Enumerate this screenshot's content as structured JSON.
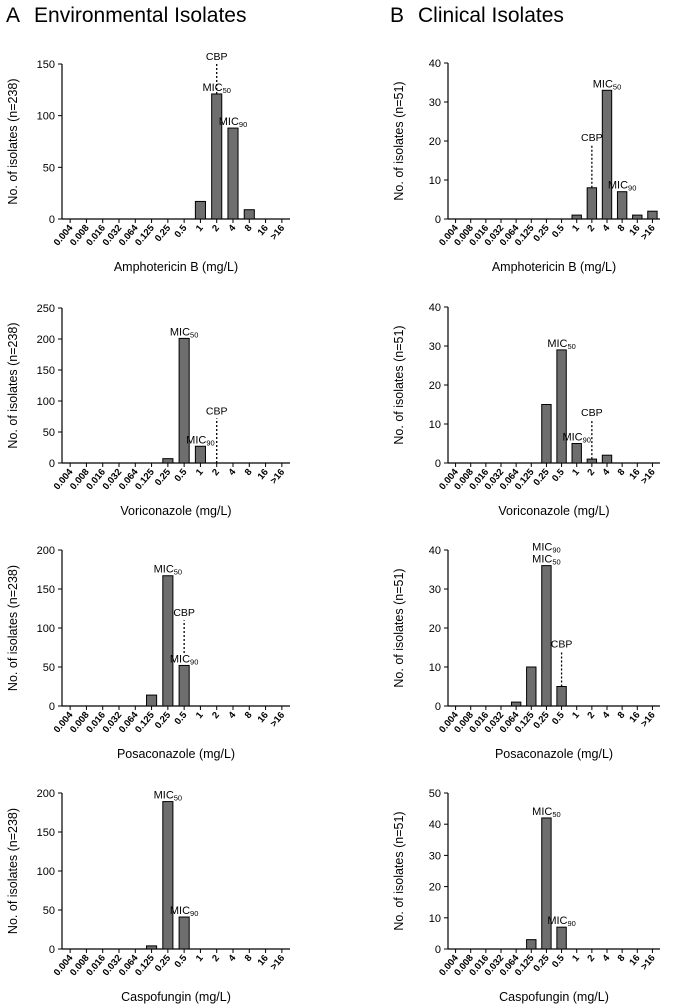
{
  "panels": {
    "A": {
      "letter": "A",
      "title": "Environmental Isolates"
    },
    "B": {
      "letter": "B",
      "title": "Clinical Isolates"
    }
  },
  "colors": {
    "bar": "#6e6e6e",
    "axis": "#000000"
  },
  "chart_data": [
    {
      "id": "env-amb",
      "type": "bar",
      "panel": "A",
      "xlabel": "Amphotericin B (mg/L)",
      "ylabel": "No. of isolates (n=238)",
      "categories": [
        "0.004",
        "0.008",
        "0.016",
        "0.032",
        "0.064",
        "0.125",
        "0.25",
        "0.5",
        "1",
        "2",
        "4",
        "8",
        "16",
        ">16"
      ],
      "values": [
        0,
        0,
        0,
        0,
        0,
        0,
        0,
        0,
        17,
        121,
        88,
        9,
        0,
        0
      ],
      "ylim": [
        0,
        150
      ],
      "yticks": [
        0,
        50,
        100,
        150
      ],
      "annotations": [
        {
          "label": "MIC",
          "sub": "50",
          "category": "2",
          "value": 121
        },
        {
          "label": "MIC",
          "sub": "90",
          "category": "4",
          "value": 88
        }
      ],
      "cbp": {
        "label": "CBP",
        "category": "2",
        "from": 121,
        "to": 150
      }
    },
    {
      "id": "cli-amb",
      "type": "bar",
      "panel": "B",
      "xlabel": "Amphotericin B (mg/L)",
      "ylabel": "No. of isolates (n=51)",
      "categories": [
        "0.004",
        "0.008",
        "0.016",
        "0.032",
        "0.064",
        "0.125",
        "0.25",
        "0.5",
        "1",
        "2",
        "4",
        "8",
        "16",
        ">16"
      ],
      "values": [
        0,
        0,
        0,
        0,
        0,
        0,
        0,
        0,
        1,
        8,
        33,
        7,
        1,
        2
      ],
      "ylim": [
        0,
        40
      ],
      "yticks": [
        0,
        10,
        20,
        30,
        40
      ],
      "annotations": [
        {
          "label": "MIC",
          "sub": "50",
          "category": "4",
          "value": 33
        },
        {
          "label": "MIC",
          "sub": "90",
          "category": "8",
          "value": 7
        }
      ],
      "cbp": {
        "label": "CBP",
        "category": "2",
        "from": 8,
        "to": 19
      }
    },
    {
      "id": "env-vor",
      "type": "bar",
      "panel": "A",
      "xlabel": "Voriconazole (mg/L)",
      "ylabel": "No. of isolates (n=238)",
      "categories": [
        "0.004",
        "0.008",
        "0.016",
        "0.032",
        "0.064",
        "0.125",
        "0.25",
        "0.5",
        "1",
        "2",
        "4",
        "8",
        "16",
        ">16"
      ],
      "values": [
        0,
        0,
        0,
        0,
        0,
        0,
        7,
        201,
        27,
        0,
        0,
        0,
        0,
        0
      ],
      "ylim": [
        0,
        250
      ],
      "yticks": [
        0,
        50,
        100,
        150,
        200,
        250
      ],
      "annotations": [
        {
          "label": "MIC",
          "sub": "50",
          "category": "0.5",
          "value": 201
        },
        {
          "label": "MIC",
          "sub": "90",
          "category": "1",
          "value": 27
        }
      ],
      "cbp": {
        "label": "CBP",
        "category": "2",
        "from": 0,
        "to": 72
      }
    },
    {
      "id": "cli-vor",
      "type": "bar",
      "panel": "B",
      "xlabel": "Voriconazole (mg/L)",
      "ylabel": "No. of isolates (n=51)",
      "categories": [
        "0.004",
        "0.008",
        "0.016",
        "0.032",
        "0.064",
        "0.125",
        "0.25",
        "0.5",
        "1",
        "2",
        "4",
        "8",
        "16",
        ">16"
      ],
      "values": [
        0,
        0,
        0,
        0,
        0,
        0,
        15,
        29,
        5,
        1,
        2,
        0,
        0,
        0
      ],
      "ylim": [
        0,
        40
      ],
      "yticks": [
        0,
        10,
        20,
        30,
        40
      ],
      "annotations": [
        {
          "label": "MIC",
          "sub": "50",
          "category": "0.5",
          "value": 29
        },
        {
          "label": "MIC",
          "sub": "90",
          "category": "1",
          "value": 5
        }
      ],
      "cbp": {
        "label": "CBP",
        "category": "2",
        "from": 1,
        "to": 11
      }
    },
    {
      "id": "env-pos",
      "type": "bar",
      "panel": "A",
      "xlabel": "Posaconazole (mg/L)",
      "ylabel": "No. of isolates (n=238)",
      "categories": [
        "0.004",
        "0.008",
        "0.016",
        "0.032",
        "0.064",
        "0.125",
        "0.25",
        "0.5",
        "1",
        "2",
        "4",
        "8",
        "16",
        ">16"
      ],
      "values": [
        0,
        0,
        0,
        0,
        0,
        14,
        167,
        52,
        0,
        0,
        0,
        0,
        0,
        0
      ],
      "ylim": [
        0,
        200
      ],
      "yticks": [
        0,
        50,
        100,
        150,
        200
      ],
      "annotations": [
        {
          "label": "MIC",
          "sub": "50",
          "category": "0.25",
          "value": 167
        },
        {
          "label": "MIC",
          "sub": "90",
          "category": "0.5",
          "value": 52
        }
      ],
      "cbp": {
        "label": "CBP",
        "category": "0.5",
        "from": 68,
        "to": 110
      }
    },
    {
      "id": "cli-pos",
      "type": "bar",
      "panel": "B",
      "xlabel": "Posaconazole (mg/L)",
      "ylabel": "No. of isolates (n=51)",
      "categories": [
        "0.004",
        "0.008",
        "0.016",
        "0.032",
        "0.064",
        "0.125",
        "0.25",
        "0.5",
        "1",
        "2",
        "4",
        "8",
        "16",
        ">16"
      ],
      "values": [
        0,
        0,
        0,
        0,
        1,
        10,
        36,
        5,
        0,
        0,
        0,
        0,
        0,
        0
      ],
      "ylim": [
        0,
        40
      ],
      "yticks": [
        0,
        10,
        20,
        30,
        40
      ],
      "annotations": [
        {
          "label": "MIC",
          "sub": "50",
          "category": "0.25",
          "value": 36
        },
        {
          "label": "MIC",
          "sub": "90",
          "category": "0.25",
          "value": 36,
          "stack": 1
        }
      ],
      "cbp": {
        "label": "CBP",
        "category": "0.5",
        "from": 5,
        "to": 14
      }
    },
    {
      "id": "env-cas",
      "type": "bar",
      "panel": "A",
      "xlabel": "Caspofungin (mg/L)",
      "ylabel": "No. of isolates (n=238)",
      "categories": [
        "0.004",
        "0.008",
        "0.016",
        "0.032",
        "0.064",
        "0.125",
        "0.25",
        "0.5",
        "1",
        "2",
        "4",
        "8",
        "16",
        ">16"
      ],
      "values": [
        0,
        0,
        0,
        0,
        0,
        4,
        189,
        41,
        0,
        0,
        0,
        0,
        0,
        0
      ],
      "ylim": [
        0,
        200
      ],
      "yticks": [
        0,
        50,
        100,
        150,
        200
      ],
      "annotations": [
        {
          "label": "MIC",
          "sub": "50",
          "category": "0.25",
          "value": 189
        },
        {
          "label": "MIC",
          "sub": "90",
          "category": "0.5",
          "value": 41
        }
      ]
    },
    {
      "id": "cli-cas",
      "type": "bar",
      "panel": "B",
      "xlabel": "Caspofungin (mg/L)",
      "ylabel": "No. of isolates (n=51)",
      "categories": [
        "0.004",
        "0.008",
        "0.016",
        "0.032",
        "0.064",
        "0.125",
        "0.25",
        "0.5",
        "1",
        "2",
        "4",
        "8",
        "16",
        ">16"
      ],
      "values": [
        0,
        0,
        0,
        0,
        0,
        3,
        42,
        7,
        0,
        0,
        0,
        0,
        0,
        0
      ],
      "ylim": [
        0,
        50
      ],
      "yticks": [
        0,
        10,
        20,
        30,
        40,
        50
      ],
      "annotations": [
        {
          "label": "MIC",
          "sub": "50",
          "category": "0.25",
          "value": 42
        },
        {
          "label": "MIC",
          "sub": "90",
          "category": "0.5",
          "value": 7
        }
      ]
    }
  ]
}
